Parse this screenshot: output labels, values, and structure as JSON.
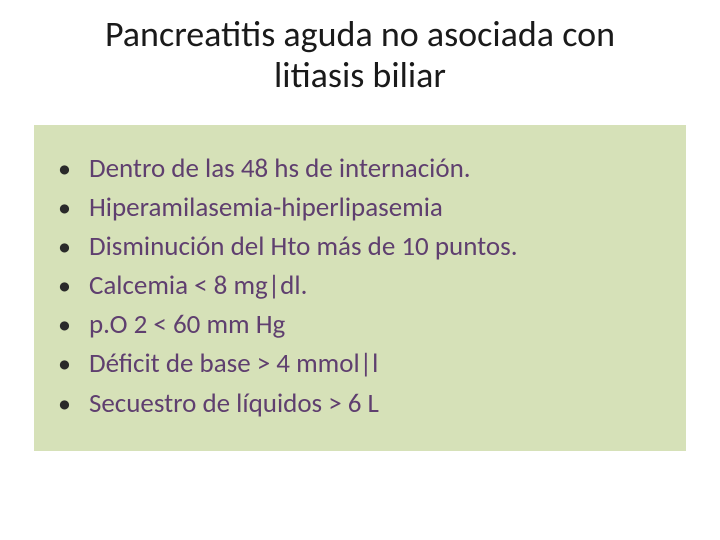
{
  "slide": {
    "title": "Pancreatitis aguda no asociada con litiasis biliar",
    "title_fontsize": 36,
    "title_color": "#1a1a1a",
    "background_color": "#ffffff",
    "content_box": {
      "background_color": "#d6e1b8",
      "bullet_color": "#2a2a2a",
      "text_color": "#5f3f6f",
      "item_fontsize": 27,
      "items": [
        "Dentro de las 48 hs de internación.",
        "Hiperamilasemia-hiperlipasemia",
        "Disminución del Hto más de 10 puntos.",
        "Calcemia <  8 mg|dl.",
        "p.O 2 < 60 mm Hg",
        "Déficit de base > 4 mmol|l",
        "Secuestro de líquidos > 6 L"
      ]
    }
  }
}
